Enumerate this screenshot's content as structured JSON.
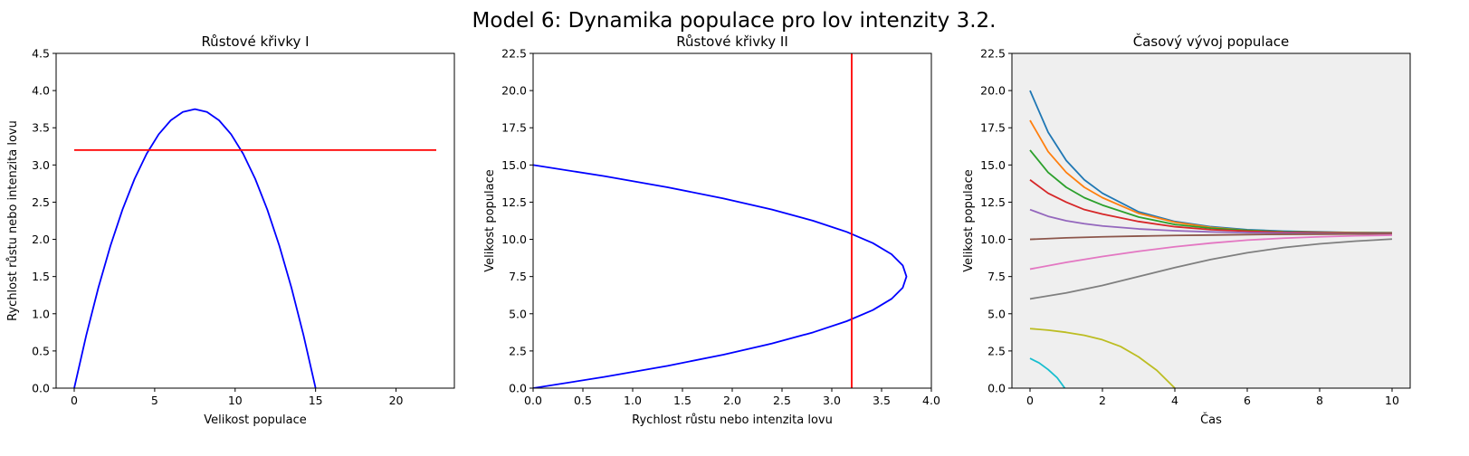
{
  "figure": {
    "title": "Model 6: Dynamika populace pro lov intenzity 3.2."
  },
  "chart_data": [
    {
      "type": "line",
      "title": "Růstové křivky I",
      "xlabel": "Velikost populace",
      "ylabel": "Rychlost růstu nebo intenzita lovu",
      "xlim": [
        -1.125,
        23.625
      ],
      "ylim": [
        0,
        4.5
      ],
      "xticks": [
        0,
        5,
        10,
        15,
        20
      ],
      "yticks": [
        0.0,
        0.5,
        1.0,
        1.5,
        2.0,
        2.5,
        3.0,
        3.5,
        4.0,
        4.5
      ],
      "grid": false,
      "background": "#ffffff",
      "series": [
        {
          "color": "#0000ff",
          "x": [
            0,
            0.75,
            1.5,
            2.25,
            3,
            3.75,
            4.5,
            5.25,
            6,
            6.75,
            7.5,
            8.25,
            9,
            9.75,
            10.5,
            11.25,
            12,
            12.75,
            13.5,
            14.25,
            15
          ],
          "y": [
            0,
            0.7125,
            1.35,
            1.9125,
            2.4,
            2.8125,
            3.15,
            3.4125,
            3.6,
            3.7125,
            3.75,
            3.7125,
            3.6,
            3.4125,
            3.15,
            2.8125,
            2.4,
            1.9125,
            1.35,
            0.7125,
            0
          ]
        },
        {
          "color": "#ff0000",
          "x": [
            0,
            22.5
          ],
          "y": [
            3.2,
            3.2
          ]
        }
      ]
    },
    {
      "type": "line",
      "title": "Růstové křivky II",
      "xlabel": "Rychlost růstu nebo intenzita lovu",
      "ylabel": "Velikost populace",
      "xlim": [
        0,
        4.0
      ],
      "ylim": [
        0,
        22.5
      ],
      "xticks": [
        0.0,
        0.5,
        1.0,
        1.5,
        2.0,
        2.5,
        3.0,
        3.5,
        4.0
      ],
      "yticks": [
        0.0,
        2.5,
        5.0,
        7.5,
        10.0,
        12.5,
        15.0,
        17.5,
        20.0,
        22.5
      ],
      "grid": false,
      "background": "#ffffff",
      "series": [
        {
          "color": "#0000ff",
          "x": [
            0,
            0.7125,
            1.35,
            1.9125,
            2.4,
            2.8125,
            3.15,
            3.4125,
            3.6,
            3.7125,
            3.75,
            3.7125,
            3.6,
            3.4125,
            3.15,
            2.8125,
            2.4,
            1.9125,
            1.35,
            0.7125,
            0
          ],
          "y": [
            0,
            0.75,
            1.5,
            2.25,
            3,
            3.75,
            4.5,
            5.25,
            6,
            6.75,
            7.5,
            8.25,
            9,
            9.75,
            10.5,
            11.25,
            12,
            12.75,
            13.5,
            14.25,
            15
          ]
        },
        {
          "color": "#ff0000",
          "x": [
            3.2,
            3.2
          ],
          "y": [
            0,
            22.5
          ]
        }
      ]
    },
    {
      "type": "line",
      "title": "Časový vývoj populace",
      "xlabel": "Čas",
      "ylabel": "Velikost populace",
      "xlim": [
        -0.5,
        10.5
      ],
      "ylim": [
        0,
        22.5
      ],
      "xticks": [
        0,
        2,
        4,
        6,
        8,
        10
      ],
      "yticks": [
        0.0,
        2.5,
        5.0,
        7.5,
        10.0,
        12.5,
        15.0,
        17.5,
        20.0,
        22.5
      ],
      "grid": false,
      "background": "#efefef",
      "series": [
        {
          "color": "#1f77b4",
          "x": [
            0,
            0.5,
            1,
            1.5,
            2,
            3,
            4,
            5,
            6,
            7,
            8,
            9,
            10
          ],
          "y": [
            20.0,
            17.2,
            15.3,
            14.0,
            13.1,
            11.85,
            11.2,
            10.85,
            10.65,
            10.55,
            10.5,
            10.45,
            10.45
          ]
        },
        {
          "color": "#ff7f0e",
          "x": [
            0,
            0.5,
            1,
            1.5,
            2,
            3,
            4,
            5,
            6,
            7,
            8,
            9,
            10
          ],
          "y": [
            18.0,
            15.9,
            14.5,
            13.5,
            12.8,
            11.75,
            11.15,
            10.8,
            10.6,
            10.5,
            10.47,
            10.45,
            10.44
          ]
        },
        {
          "color": "#2ca02c",
          "x": [
            0,
            0.5,
            1,
            1.5,
            2,
            3,
            4,
            5,
            6,
            7,
            8,
            9,
            10
          ],
          "y": [
            16.0,
            14.5,
            13.5,
            12.8,
            12.3,
            11.5,
            11.0,
            10.75,
            10.6,
            10.5,
            10.46,
            10.44,
            10.43
          ]
        },
        {
          "color": "#d62728",
          "x": [
            0,
            0.5,
            1,
            1.5,
            2,
            3,
            4,
            5,
            6,
            7,
            8,
            9,
            10
          ],
          "y": [
            14.0,
            13.1,
            12.5,
            12.0,
            11.7,
            11.2,
            10.85,
            10.65,
            10.55,
            10.47,
            10.44,
            10.42,
            10.41
          ]
        },
        {
          "color": "#9467bd",
          "x": [
            0,
            0.5,
            1,
            1.5,
            2,
            3,
            4,
            5,
            6,
            7,
            8,
            9,
            10
          ],
          "y": [
            12.0,
            11.55,
            11.25,
            11.05,
            10.9,
            10.7,
            10.58,
            10.5,
            10.45,
            10.42,
            10.4,
            10.39,
            10.39
          ]
        },
        {
          "color": "#8c564b",
          "x": [
            0,
            1,
            2,
            3,
            4,
            5,
            6,
            7,
            8,
            9,
            10
          ],
          "y": [
            10.0,
            10.1,
            10.17,
            10.22,
            10.26,
            10.29,
            10.32,
            10.34,
            10.35,
            10.36,
            10.37
          ]
        },
        {
          "color": "#e377c2",
          "x": [
            0,
            1,
            2,
            3,
            4,
            5,
            6,
            7,
            8,
            9,
            10
          ],
          "y": [
            8.0,
            8.45,
            8.85,
            9.2,
            9.5,
            9.75,
            9.95,
            10.08,
            10.17,
            10.24,
            10.28
          ]
        },
        {
          "color": "#7f7f7f",
          "x": [
            0,
            1,
            2,
            3,
            4,
            5,
            6,
            7,
            8,
            9,
            10
          ],
          "y": [
            6.0,
            6.4,
            6.9,
            7.5,
            8.1,
            8.65,
            9.1,
            9.45,
            9.7,
            9.88,
            10.02
          ]
        },
        {
          "color": "#bcbd22",
          "x": [
            0,
            0.5,
            1,
            1.5,
            2,
            2.5,
            3,
            3.5,
            4
          ],
          "y": [
            4.0,
            3.9,
            3.75,
            3.55,
            3.25,
            2.8,
            2.1,
            1.2,
            0
          ]
        },
        {
          "color": "#17becf",
          "x": [
            0,
            0.25,
            0.5,
            0.75,
            0.96
          ],
          "y": [
            2.0,
            1.7,
            1.25,
            0.7,
            0
          ]
        }
      ]
    }
  ]
}
